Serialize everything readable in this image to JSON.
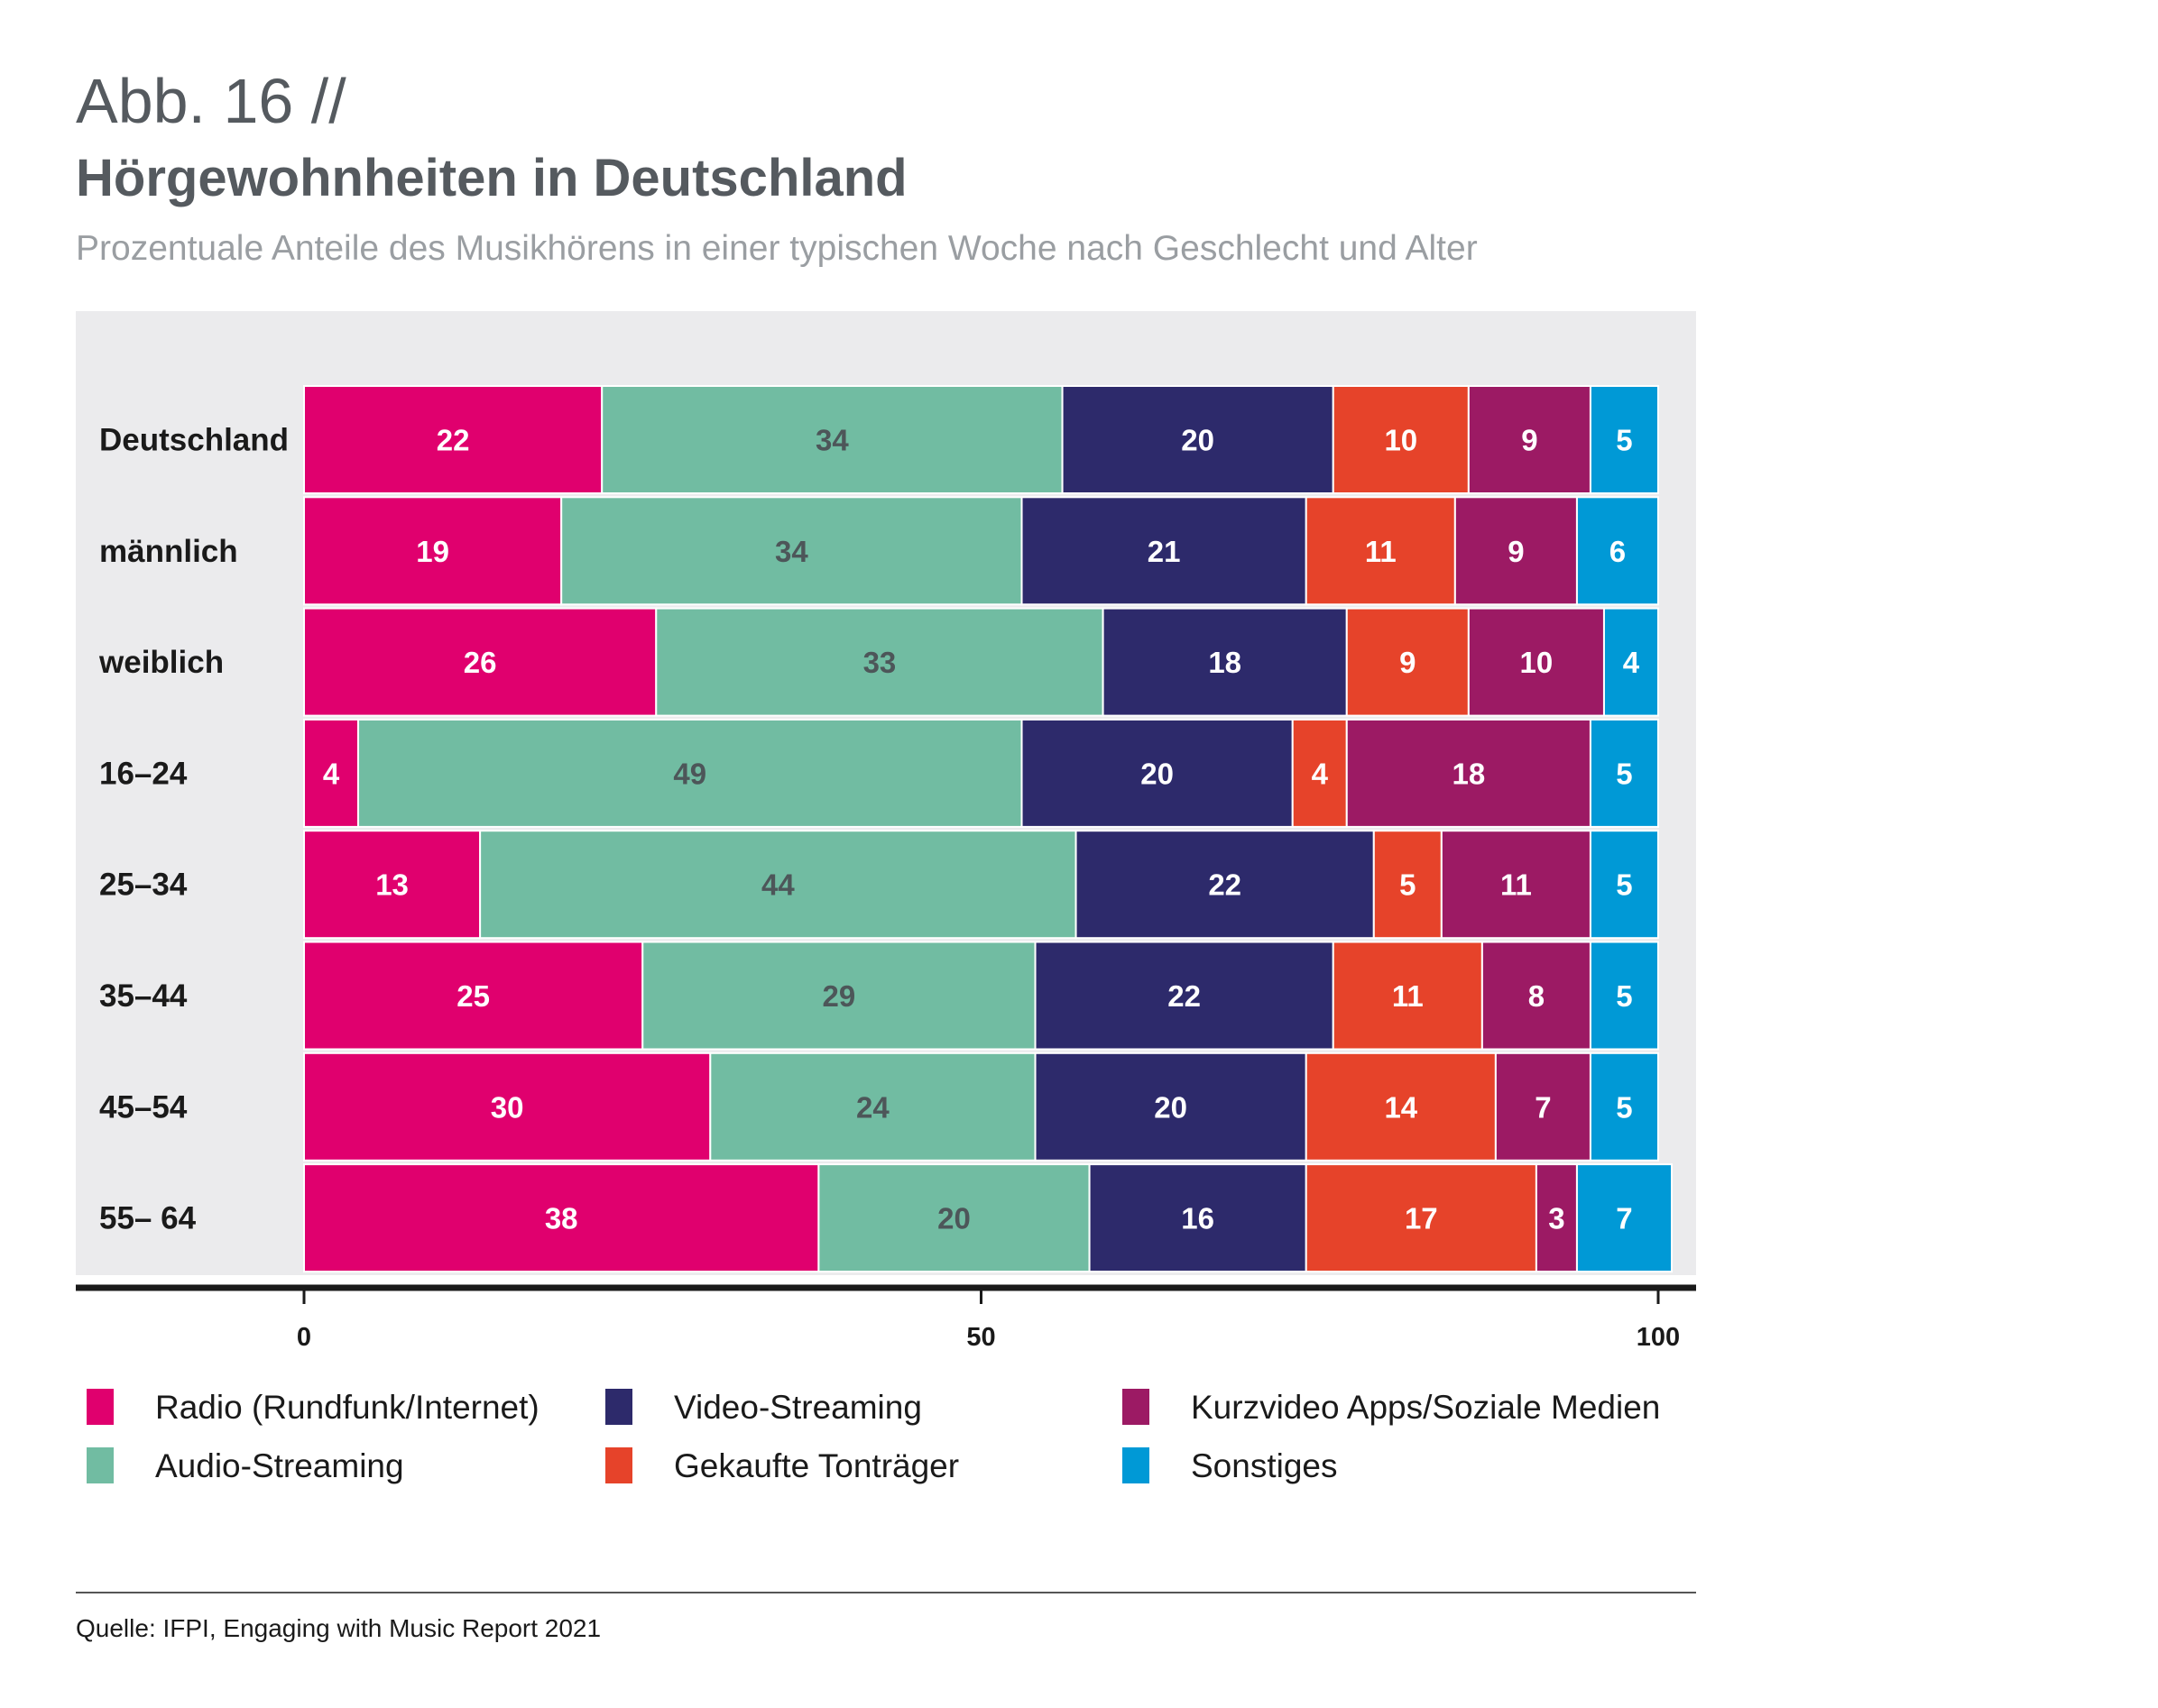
{
  "figure": {
    "number": "Abb. 16 //",
    "title": "Hörgewohnheiten in Deutschland",
    "subtitle": "Prozentuale Anteile des Musikhörens in einer typischen Woche nach Geschlecht und Alter",
    "source": "Quelle: IFPI, Engaging with Music Report 2021"
  },
  "chart_data": {
    "type": "bar",
    "orientation": "horizontal",
    "stacked": true,
    "categories": [
      "Deutschland",
      "männlich",
      "weiblich",
      "16–24",
      "25–34",
      "35–44",
      "45–54",
      "55– 64"
    ],
    "series": [
      {
        "name": "Radio (Rundfunk/Internet)",
        "color": "#e0006e",
        "label_color": "#ffffff",
        "values": [
          22,
          19,
          26,
          4,
          13,
          25,
          30,
          38
        ]
      },
      {
        "name": "Audio-Streaming",
        "color": "#71bca2",
        "label_color": "#4d5659",
        "values": [
          34,
          34,
          33,
          49,
          44,
          29,
          24,
          20
        ]
      },
      {
        "name": "Video-Streaming",
        "color": "#2d2a6b",
        "label_color": "#ffffff",
        "values": [
          20,
          21,
          18,
          20,
          22,
          22,
          20,
          16
        ]
      },
      {
        "name": "Gekaufte Tonträger",
        "color": "#e6432a",
        "label_color": "#ffffff",
        "values": [
          10,
          11,
          9,
          4,
          5,
          11,
          14,
          17
        ]
      },
      {
        "name": "Kurzvideo Apps/Soziale Medien",
        "color": "#9c1a64",
        "label_color": "#ffffff",
        "values": [
          9,
          9,
          10,
          18,
          11,
          8,
          7,
          3
        ]
      },
      {
        "name": "Sonstiges",
        "color": "#0099d6",
        "label_color": "#ffffff",
        "values": [
          5,
          6,
          4,
          5,
          5,
          5,
          5,
          7
        ]
      }
    ],
    "xlim": [
      0,
      100
    ],
    "xticks": [
      0,
      50,
      100
    ],
    "grid": false,
    "legend_position": "bottom",
    "background_color": "#ebebed"
  }
}
